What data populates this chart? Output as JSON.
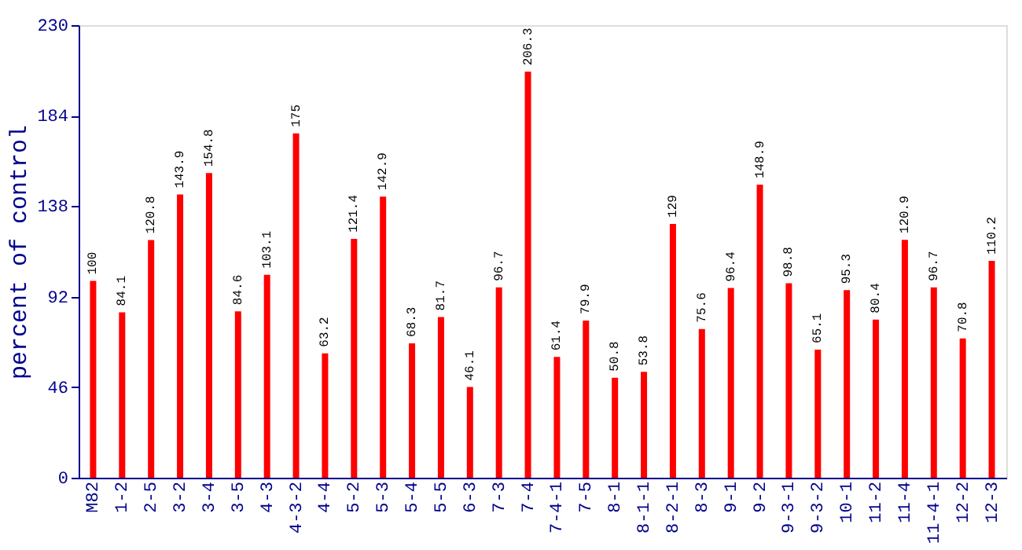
{
  "chart_data": {
    "type": "bar",
    "ylabel": "percent of control",
    "categories": [
      "M82",
      "1-2",
      "2-5",
      "3-2",
      "3-4",
      "3-5",
      "4-3",
      "4-3-2",
      "4-4",
      "5-2",
      "5-3",
      "5-4",
      "5-5",
      "6-3",
      "7-3",
      "7-4",
      "7-4-1",
      "7-5",
      "8-1",
      "8-1-1",
      "8-2-1",
      "8-3",
      "9-1",
      "9-2",
      "9-3-1",
      "9-3-2",
      "10-1",
      "11-2",
      "11-4",
      "11-4-1",
      "12-2",
      "12-3"
    ],
    "values": [
      100,
      84.1,
      120.8,
      143.9,
      154.8,
      84.6,
      103.1,
      175,
      63.2,
      121.4,
      142.9,
      68.3,
      81.7,
      46.1,
      96.7,
      206.3,
      61.4,
      79.9,
      50.8,
      53.8,
      129,
      75.6,
      96.4,
      148.9,
      98.8,
      65.1,
      95.3,
      80.4,
      120.9,
      96.7,
      70.8,
      110.2
    ],
    "color": "#ff0000",
    "ylim": [
      0,
      230
    ],
    "yticks": [
      0,
      46,
      92,
      138,
      184,
      230
    ],
    "grid": false,
    "data_labels": true
  }
}
